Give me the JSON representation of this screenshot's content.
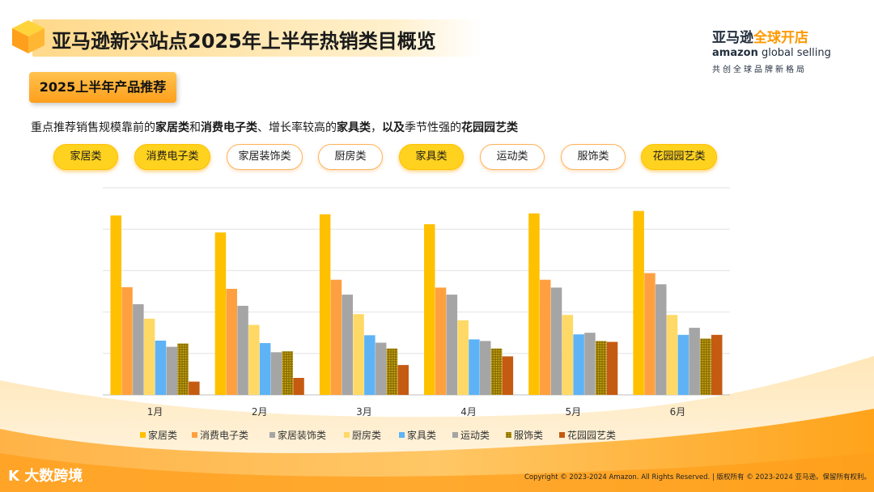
{
  "header": {
    "title": "亚马逊新兴站点2025年上半年热销类目概览"
  },
  "logo": {
    "cn_part1": "亚马逊",
    "cn_part2": "全球开店",
    "en_bold": "amazon",
    "en_rest": " global selling",
    "slogan": "共创全球品牌新格局"
  },
  "subtitle": "2025上半年产品推荐",
  "description": {
    "p1": "重点推荐销售规模靠前的",
    "b1": "家居类",
    "p2": "和",
    "b2": "消费电子类",
    "p3": "、增长率较高的",
    "b3": "家具类",
    "p4": "，",
    "b4": "以及",
    "p5": "季节性强的",
    "b5": "花园园艺类"
  },
  "category_pills": [
    {
      "label": "家居类",
      "style": "solid"
    },
    {
      "label": "消费电子类",
      "style": "solid"
    },
    {
      "label": "家居装饰类",
      "style": "outline"
    },
    {
      "label": "厨房类",
      "style": "outline"
    },
    {
      "label": "家具类",
      "style": "solid"
    },
    {
      "label": "运动类",
      "style": "outline"
    },
    {
      "label": "服饰类",
      "style": "outline"
    },
    {
      "label": "花园园艺类",
      "style": "solid"
    }
  ],
  "chart_data": {
    "type": "bar",
    "categories": [
      "1月",
      "2月",
      "3月",
      "4月",
      "5月",
      "6月"
    ],
    "ylim": [
      0,
      50
    ],
    "grid": true,
    "legend_position": "bottom",
    "series": [
      {
        "name": "家居类",
        "color": "#ffc000",
        "pattern": "solid",
        "values": [
          43.3,
          39.2,
          43.6,
          41.2,
          43.8,
          44.4
        ]
      },
      {
        "name": "消费电子类",
        "color": "#ffa040",
        "pattern": "solid",
        "values": [
          26.0,
          25.6,
          27.8,
          25.9,
          27.8,
          29.4
        ]
      },
      {
        "name": "家居装饰类",
        "color": "#a5a5a5",
        "pattern": "solid",
        "values": [
          21.9,
          21.5,
          24.2,
          24.2,
          25.9,
          26.7
        ]
      },
      {
        "name": "厨房类",
        "color": "#ffd966",
        "pattern": "solid",
        "values": [
          18.4,
          16.9,
          19.5,
          18.0,
          19.3,
          19.3
        ]
      },
      {
        "name": "家具类",
        "color": "#5eb3f6",
        "pattern": "solid",
        "values": [
          13.1,
          12.5,
          14.4,
          13.4,
          14.6,
          14.5
        ]
      },
      {
        "name": "运动类",
        "color": "#a5a5a5",
        "pattern": "solid",
        "values": [
          11.6,
          10.3,
          12.6,
          13.0,
          15.0,
          16.2
        ]
      },
      {
        "name": "服饰类",
        "color": "#b8960c",
        "pattern": "dotted",
        "values": [
          12.4,
          10.5,
          11.2,
          11.2,
          13.0,
          13.6
        ]
      },
      {
        "name": "花园园艺类",
        "color": "#c55a11",
        "pattern": "solid",
        "values": [
          3.2,
          4.1,
          7.2,
          9.3,
          12.8,
          14.5
        ]
      }
    ]
  },
  "footer": {
    "brand": "大数跨境",
    "copyright": "Copyright © 2023-2024 Amazon. All Rights Reserved. | 版权所有 © 2023-2024 亚马逊。保留所有权利。"
  }
}
